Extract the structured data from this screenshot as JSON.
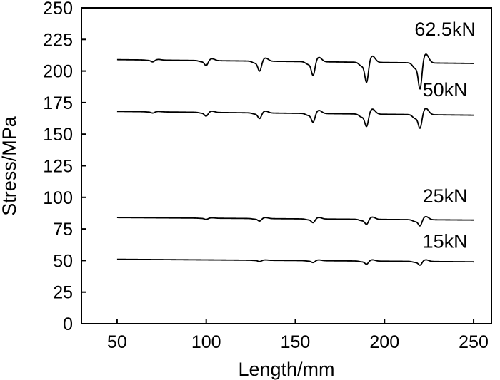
{
  "chart_data": {
    "type": "line",
    "title": "",
    "xlabel": "Length/mm",
    "ylabel": "Stress/MPa",
    "xlim": [
      30,
      260
    ],
    "ylim": [
      0,
      250
    ],
    "xticks": [
      50,
      100,
      150,
      200,
      250
    ],
    "yticks": [
      0,
      25,
      50,
      75,
      100,
      125,
      150,
      175,
      200,
      225,
      250
    ],
    "grid": false,
    "line_color": "#000000",
    "series": [
      {
        "name": "62.5kN",
        "base_start": 209,
        "base_end": 206,
        "x_start": 50,
        "x_end": 250,
        "label_x": 234,
        "label_y": 228,
        "dips": [
          {
            "x": 70,
            "depth": 1.5,
            "rise": 0.5
          },
          {
            "x": 100,
            "depth": 4,
            "rise": 1.5
          },
          {
            "x": 130,
            "depth": 8,
            "rise": 2.5
          },
          {
            "x": 160,
            "depth": 11,
            "rise": 3.5
          },
          {
            "x": 190,
            "depth": 16,
            "rise": 5
          },
          {
            "x": 220,
            "depth": 21,
            "rise": 7
          }
        ]
      },
      {
        "name": "50kN",
        "base_start": 168,
        "base_end": 165,
        "x_start": 50,
        "x_end": 250,
        "label_x": 234,
        "label_y": 180,
        "dips": [
          {
            "x": 70,
            "depth": 1,
            "rise": 0.3
          },
          {
            "x": 100,
            "depth": 3,
            "rise": 1
          },
          {
            "x": 130,
            "depth": 4.5,
            "rise": 1.5
          },
          {
            "x": 160,
            "depth": 7,
            "rise": 2.5
          },
          {
            "x": 190,
            "depth": 10,
            "rise": 4
          },
          {
            "x": 220,
            "depth": 11,
            "rise": 5
          }
        ]
      },
      {
        "name": "25kN",
        "base_start": 84,
        "base_end": 82,
        "x_start": 50,
        "x_end": 250,
        "label_x": 234,
        "label_y": 96,
        "dips": [
          {
            "x": 100,
            "depth": 1,
            "rise": 0.3
          },
          {
            "x": 130,
            "depth": 2,
            "rise": 0.8
          },
          {
            "x": 160,
            "depth": 3,
            "rise": 1.2
          },
          {
            "x": 190,
            "depth": 4,
            "rise": 1.8
          },
          {
            "x": 220,
            "depth": 5,
            "rise": 2.5
          }
        ]
      },
      {
        "name": "15kN",
        "base_start": 51,
        "base_end": 49,
        "x_start": 50,
        "x_end": 250,
        "label_x": 234,
        "label_y": 60,
        "dips": [
          {
            "x": 130,
            "depth": 1,
            "rise": 0.3
          },
          {
            "x": 160,
            "depth": 1.5,
            "rise": 0.6
          },
          {
            "x": 190,
            "depth": 2.5,
            "rise": 1
          },
          {
            "x": 220,
            "depth": 3,
            "rise": 1.3
          }
        ]
      }
    ]
  }
}
